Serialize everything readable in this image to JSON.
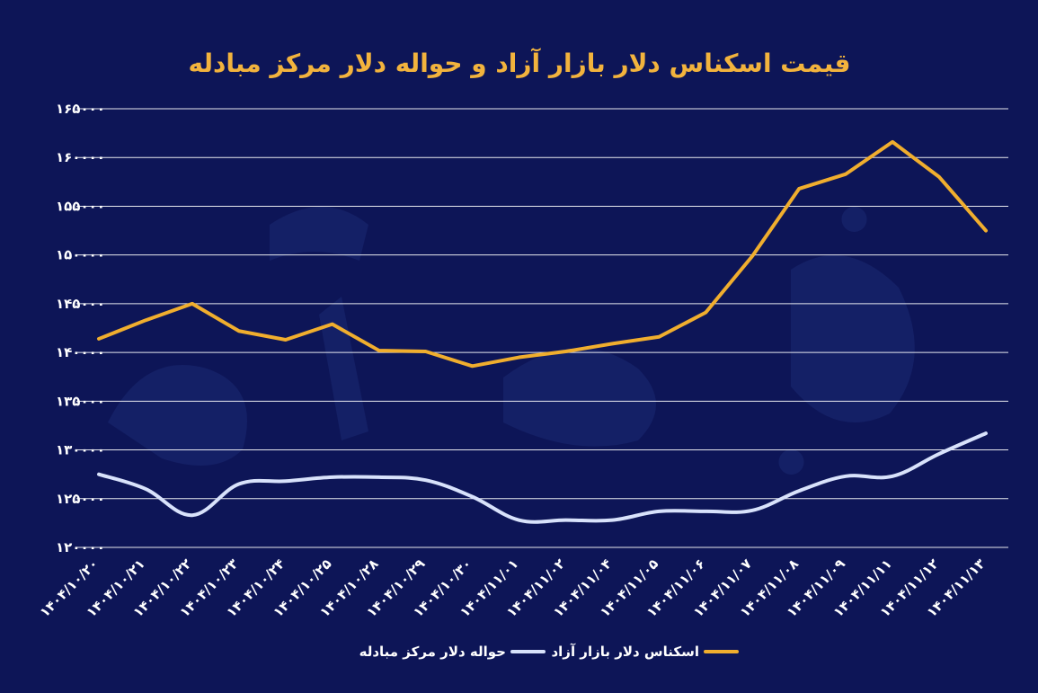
{
  "colors": {
    "background": "#0d1557",
    "title": "#f2b33d",
    "grid": "#ffffff",
    "tick_text": "#ffffff",
    "series_free_market": "#f0ae2e",
    "series_exchange_center": "#d8e2fb"
  },
  "chart_data": {
    "type": "line",
    "title": "قیمت اسکناس دلار بازار آزاد و حواله دلار مرکز مبادله",
    "xlabel": "",
    "ylabel": "",
    "ylim": [
      120000,
      165000
    ],
    "yticks": [
      120000,
      125000,
      130000,
      135000,
      140000,
      145000,
      150000,
      155000,
      160000,
      165000
    ],
    "ytick_labels": [
      "۱۲۰۰۰۰",
      "۱۲۵۰۰۰",
      "۱۳۰۰۰۰",
      "۱۳۵۰۰۰",
      "۱۴۰۰۰۰",
      "۱۴۵۰۰۰",
      "۱۵۰۰۰۰",
      "۱۵۵۰۰۰",
      "۱۶۰۰۰۰",
      "۱۶۵۰۰۰"
    ],
    "grid": true,
    "legend_position": "bottom-center",
    "categories": [
      "۱۴۰۴/۱۰/۲۰",
      "۱۴۰۴/۱۰/۲۱",
      "۱۴۰۴/۱۰/۲۲",
      "۱۴۰۴/۱۰/۲۳",
      "۱۴۰۴/۱۰/۲۴",
      "۱۴۰۴/۱۰/۲۵",
      "۱۴۰۴/۱۰/۲۸",
      "۱۴۰۴/۱۰/۲۹",
      "۱۴۰۴/۱۰/۳۰",
      "۱۴۰۴/۱۱/۰۱",
      "۱۴۰۴/۱۱/۰۲",
      "۱۴۰۴/۱۱/۰۴",
      "۱۴۰۴/۱۱/۰۵",
      "۱۴۰۴/۱۱/۰۶",
      "۱۴۰۴/۱۱/۰۷",
      "۱۴۰۴/۱۱/۰۸",
      "۱۴۰۴/۱۱/۰۹",
      "۱۴۰۴/۱۱/۱۱",
      "۱۴۰۴/۱۱/۱۲",
      "۱۴۰۴/۱۱/۱۳"
    ],
    "series": [
      {
        "name": "اسکناس دلار بازار آزاد",
        "values": [
          141400,
          143300,
          145000,
          142200,
          141300,
          142900,
          140200,
          140100,
          138600,
          139500,
          140100,
          140900,
          141600,
          144100,
          149900,
          156800,
          158300,
          161600,
          158000,
          152500
        ],
        "smooth": false
      },
      {
        "name": "حواله دلار مرکز مبادله",
        "values": [
          127500,
          126000,
          123300,
          126500,
          126800,
          127200,
          127200,
          126900,
          125200,
          122800,
          122800,
          122800,
          123700,
          123700,
          123800,
          125800,
          127300,
          127300,
          129600,
          131700
        ],
        "smooth": true
      }
    ]
  }
}
